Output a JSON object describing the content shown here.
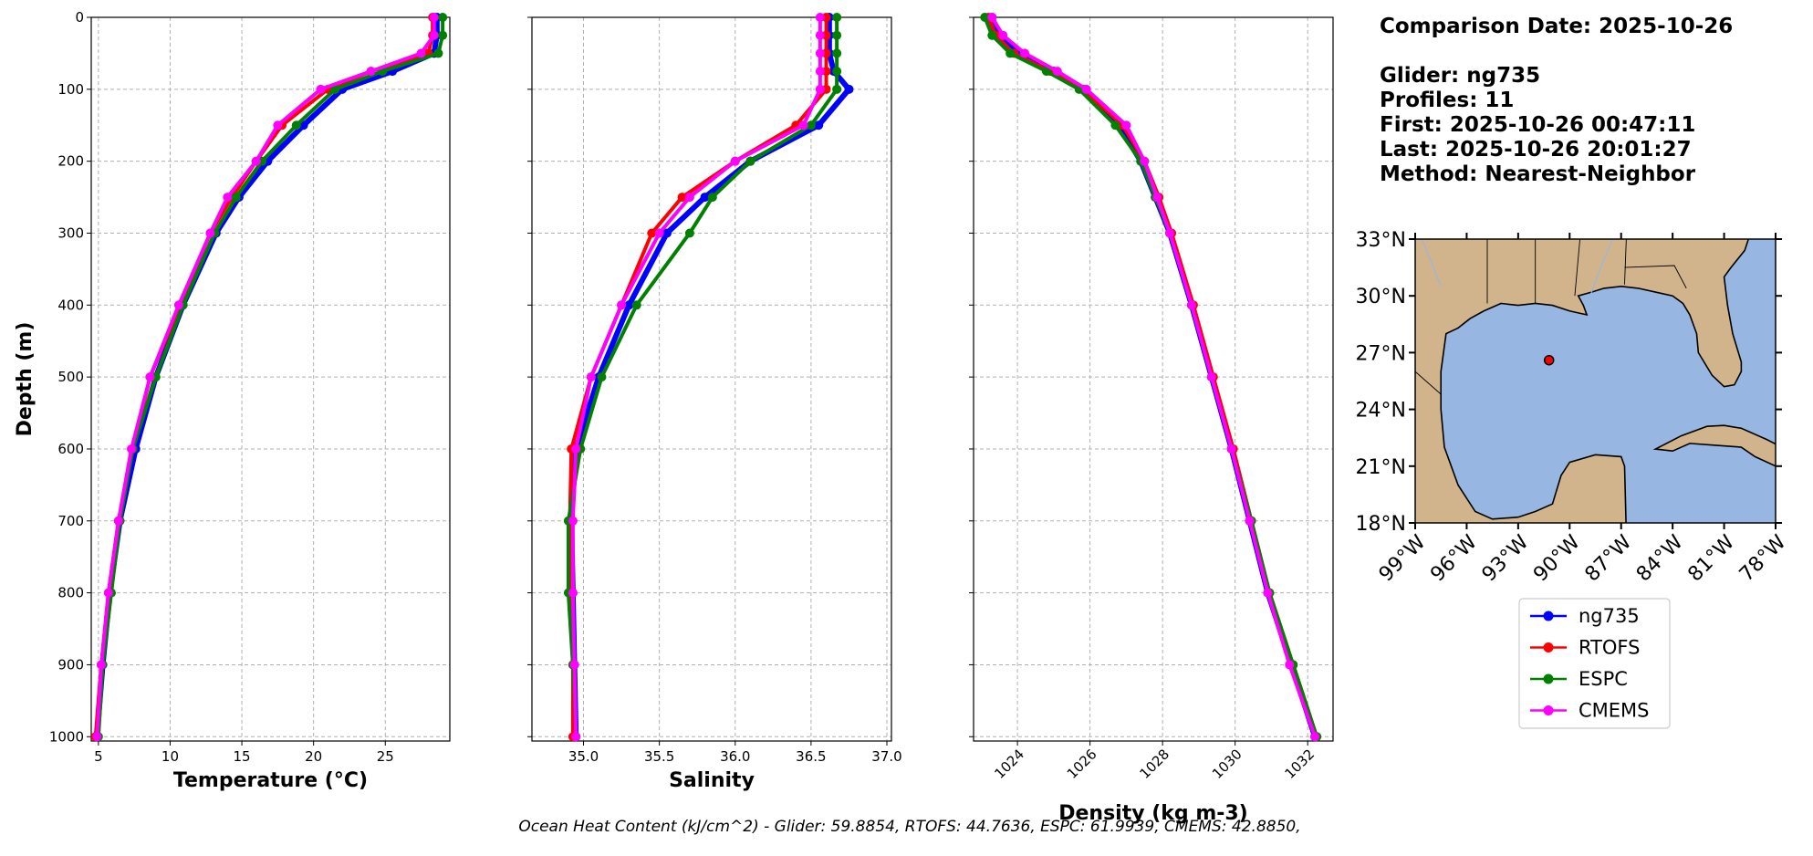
{
  "chart_data": [
    {
      "type": "line",
      "xlabel": "Temperature (°C)",
      "ylabel": "Depth (m)",
      "depth": [
        0,
        25,
        50,
        75,
        100,
        150,
        200,
        250,
        300,
        400,
        500,
        600,
        700,
        800,
        900,
        1000
      ],
      "series": [
        {
          "name": "ng735",
          "color": "#0000ff",
          "values": [
            28.6,
            28.6,
            28.4,
            25.5,
            22.0,
            19.3,
            16.8,
            14.8,
            13.2,
            10.9,
            9.0,
            7.6,
            6.5,
            5.8,
            5.3,
            4.9
          ]
        },
        {
          "name": "RTOFS",
          "color": "#ff0000",
          "values": [
            28.3,
            28.3,
            28.0,
            24.0,
            21.0,
            17.8,
            16.0,
            14.3,
            12.8,
            10.7,
            8.6,
            7.4,
            6.4,
            5.7,
            5.2,
            4.8
          ]
        },
        {
          "name": "ESPC",
          "color": "#008000",
          "values": [
            29.0,
            29.0,
            28.7,
            24.8,
            21.5,
            18.8,
            16.4,
            14.6,
            13.1,
            10.9,
            9.0,
            7.4,
            6.5,
            5.9,
            5.3,
            5.0
          ]
        },
        {
          "name": "CMEMS",
          "color": "#ff00ff",
          "values": [
            28.4,
            28.4,
            27.5,
            24.0,
            20.5,
            17.5,
            16.0,
            14.0,
            12.8,
            10.6,
            8.6,
            7.3,
            6.4,
            5.7,
            5.2,
            4.9
          ]
        }
      ],
      "xlim": [
        4.5,
        29.5
      ],
      "xticks": [
        5,
        10,
        15,
        20,
        25
      ],
      "ylim": [
        1006,
        0
      ],
      "yticks": [
        0,
        100,
        200,
        300,
        400,
        500,
        600,
        700,
        800,
        900,
        1000
      ],
      "ytick_labels": true,
      "grid": true
    },
    {
      "type": "line",
      "xlabel": "Salinity",
      "depth": [
        0,
        25,
        50,
        75,
        100,
        150,
        200,
        250,
        300,
        400,
        500,
        600,
        700,
        800,
        900,
        1000
      ],
      "series": [
        {
          "name": "ng735",
          "color": "#0000ff",
          "values": [
            36.62,
            36.62,
            36.62,
            36.65,
            36.75,
            36.55,
            36.1,
            35.8,
            35.55,
            35.3,
            35.1,
            34.95,
            34.92,
            34.93,
            34.94,
            34.95
          ]
        },
        {
          "name": "RTOFS",
          "color": "#ff0000",
          "values": [
            36.6,
            36.6,
            36.6,
            36.6,
            36.6,
            36.4,
            36.0,
            35.65,
            35.45,
            35.25,
            35.05,
            34.92,
            34.91,
            34.92,
            34.93,
            34.93
          ]
        },
        {
          "name": "ESPC",
          "color": "#008000",
          "values": [
            36.67,
            36.67,
            36.67,
            36.67,
            36.67,
            36.5,
            36.1,
            35.85,
            35.7,
            35.35,
            35.12,
            34.98,
            34.9,
            34.9,
            34.93,
            34.95
          ]
        },
        {
          "name": "CMEMS",
          "color": "#ff00ff",
          "values": [
            36.56,
            36.56,
            36.56,
            36.56,
            36.56,
            36.45,
            36.0,
            35.7,
            35.5,
            35.25,
            35.05,
            34.95,
            34.93,
            34.93,
            34.94,
            34.95
          ]
        }
      ],
      "xlim": [
        34.66,
        37.03
      ],
      "xticks": [
        {
          "value": 35,
          "label": "35.0"
        },
        35.5,
        {
          "value": 36,
          "label": "36.0"
        },
        36.5,
        {
          "value": 37,
          "label": "37.0"
        }
      ],
      "ylim": [
        1006,
        0
      ],
      "yticks": [
        0,
        100,
        200,
        300,
        400,
        500,
        600,
        700,
        800,
        900,
        1000
      ],
      "ytick_labels": false,
      "grid": true
    },
    {
      "type": "line",
      "xlabel": "Density (kg m-3)",
      "depth": [
        0,
        25,
        50,
        75,
        100,
        150,
        200,
        250,
        300,
        400,
        500,
        600,
        700,
        800,
        900,
        1000
      ],
      "series": [
        {
          "name": "ng735",
          "color": "#0000ff",
          "values": [
            1023.3,
            1023.5,
            1024.0,
            1025.0,
            1025.8,
            1026.8,
            1027.4,
            1027.8,
            1028.2,
            1028.8,
            1029.35,
            1029.9,
            1030.4,
            1030.9,
            1031.55,
            1032.2
          ]
        },
        {
          "name": "RTOFS",
          "color": "#ff0000",
          "values": [
            1023.2,
            1023.4,
            1023.9,
            1024.9,
            1025.8,
            1026.9,
            1027.5,
            1027.9,
            1028.25,
            1028.85,
            1029.4,
            1029.95,
            1030.45,
            1030.95,
            1031.6,
            1032.25
          ]
        },
        {
          "name": "ESPC",
          "color": "#008000",
          "values": [
            1023.1,
            1023.3,
            1023.8,
            1024.8,
            1025.7,
            1026.7,
            1027.4,
            1027.8,
            1028.2,
            1028.8,
            1029.35,
            1029.9,
            1030.45,
            1030.95,
            1031.6,
            1032.25
          ]
        },
        {
          "name": "CMEMS",
          "color": "#ff00ff",
          "values": [
            1023.3,
            1023.6,
            1024.2,
            1025.1,
            1025.9,
            1027.0,
            1027.5,
            1027.85,
            1028.2,
            1028.8,
            1029.35,
            1029.9,
            1030.4,
            1030.9,
            1031.5,
            1032.2
          ]
        }
      ],
      "xlim": [
        1022.79,
        1032.7
      ],
      "xticks": [
        1024,
        1026,
        1028,
        1030,
        1032
      ],
      "xtick_rotation": -45,
      "ylim": [
        1006,
        0
      ],
      "yticks": [
        0,
        100,
        200,
        300,
        400,
        500,
        600,
        700,
        800,
        900,
        1000
      ],
      "ytick_labels": false,
      "grid": true
    },
    {
      "type": "map",
      "x": [
        -91.2
      ],
      "values": [
        26.6
      ],
      "color": "#ff0000",
      "xlim": [
        -99,
        -78
      ],
      "ylim": [
        18,
        33
      ],
      "xticks": [
        {
          "value": -99,
          "label": "99°W"
        },
        {
          "value": -96,
          "label": "96°W"
        },
        {
          "value": -93,
          "label": "93°W"
        },
        {
          "value": -90,
          "label": "90°W"
        },
        {
          "value": -87,
          "label": "87°W"
        },
        {
          "value": -84,
          "label": "84°W"
        },
        {
          "value": -81,
          "label": "81°W"
        },
        {
          "value": -78,
          "label": "78°W"
        }
      ],
      "yticks": [
        {
          "value": 18,
          "label": "18°N"
        },
        {
          "value": 21,
          "label": "21°N"
        },
        {
          "value": 24,
          "label": "24°N"
        },
        {
          "value": 27,
          "label": "27°N"
        },
        {
          "value": 30,
          "label": "30°N"
        },
        {
          "value": 33,
          "label": "33°N"
        }
      ],
      "xtick_rotation": -45
    }
  ],
  "info": [
    "Comparison Date: 2025-10-26",
    "Glider: ng735",
    "Profiles: 11",
    "First: 2025-10-26 00:47:11",
    "Last: 2025-10-26 20:01:27",
    "Method: Nearest-Neighbor"
  ],
  "footer": "Ocean Heat Content (kJ/cm^2) - Glider: 59.8854,  RTOFS: 44.7636,  ESPC: 61.9939,  CMEMS: 42.8850,"
}
